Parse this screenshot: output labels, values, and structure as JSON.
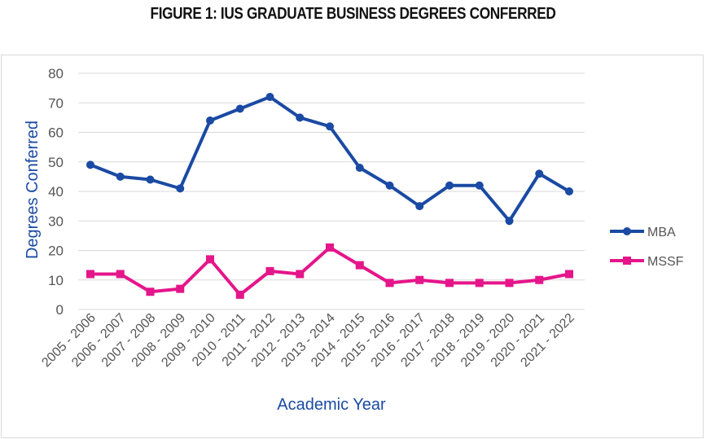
{
  "chart_data": {
    "type": "line",
    "title": "FIGURE 1: IUS GRADUATE BUSINESS DEGREES CONFERRED",
    "xlabel": "Academic Year",
    "ylabel": "Degrees Conferred",
    "ylim": [
      0,
      80
    ],
    "yticks": [
      "0",
      "10",
      "20",
      "30",
      "40",
      "50",
      "60",
      "70",
      "80"
    ],
    "grid": "horizontal",
    "legend_position": "right",
    "categories": [
      "2005 - 2006",
      "2006 - 2007",
      "2007 - 2008",
      "2008 - 2009",
      "2009 - 2010",
      "2010 - 2011",
      "2011 - 2012",
      "2012 - 2013",
      "2013 - 2014",
      "2014 - 2015",
      "2015 - 2016",
      "2016 - 2017",
      "2017 - 2018",
      "2018 - 2019",
      "2019 - 2020",
      "2020 - 2021",
      "2021 - 2022"
    ],
    "series": [
      {
        "name": "MBA",
        "color": "#1a4aa3",
        "marker": "circle",
        "values": [
          49,
          45,
          44,
          41,
          64,
          68,
          72,
          65,
          62,
          48,
          42,
          35,
          42,
          42,
          30,
          46,
          40
        ]
      },
      {
        "name": "MSSF",
        "color": "#e5158a",
        "marker": "square",
        "values": [
          12,
          12,
          6,
          7,
          17,
          5,
          13,
          12,
          21,
          15,
          9,
          10,
          9,
          9,
          9,
          10,
          12
        ]
      }
    ]
  }
}
